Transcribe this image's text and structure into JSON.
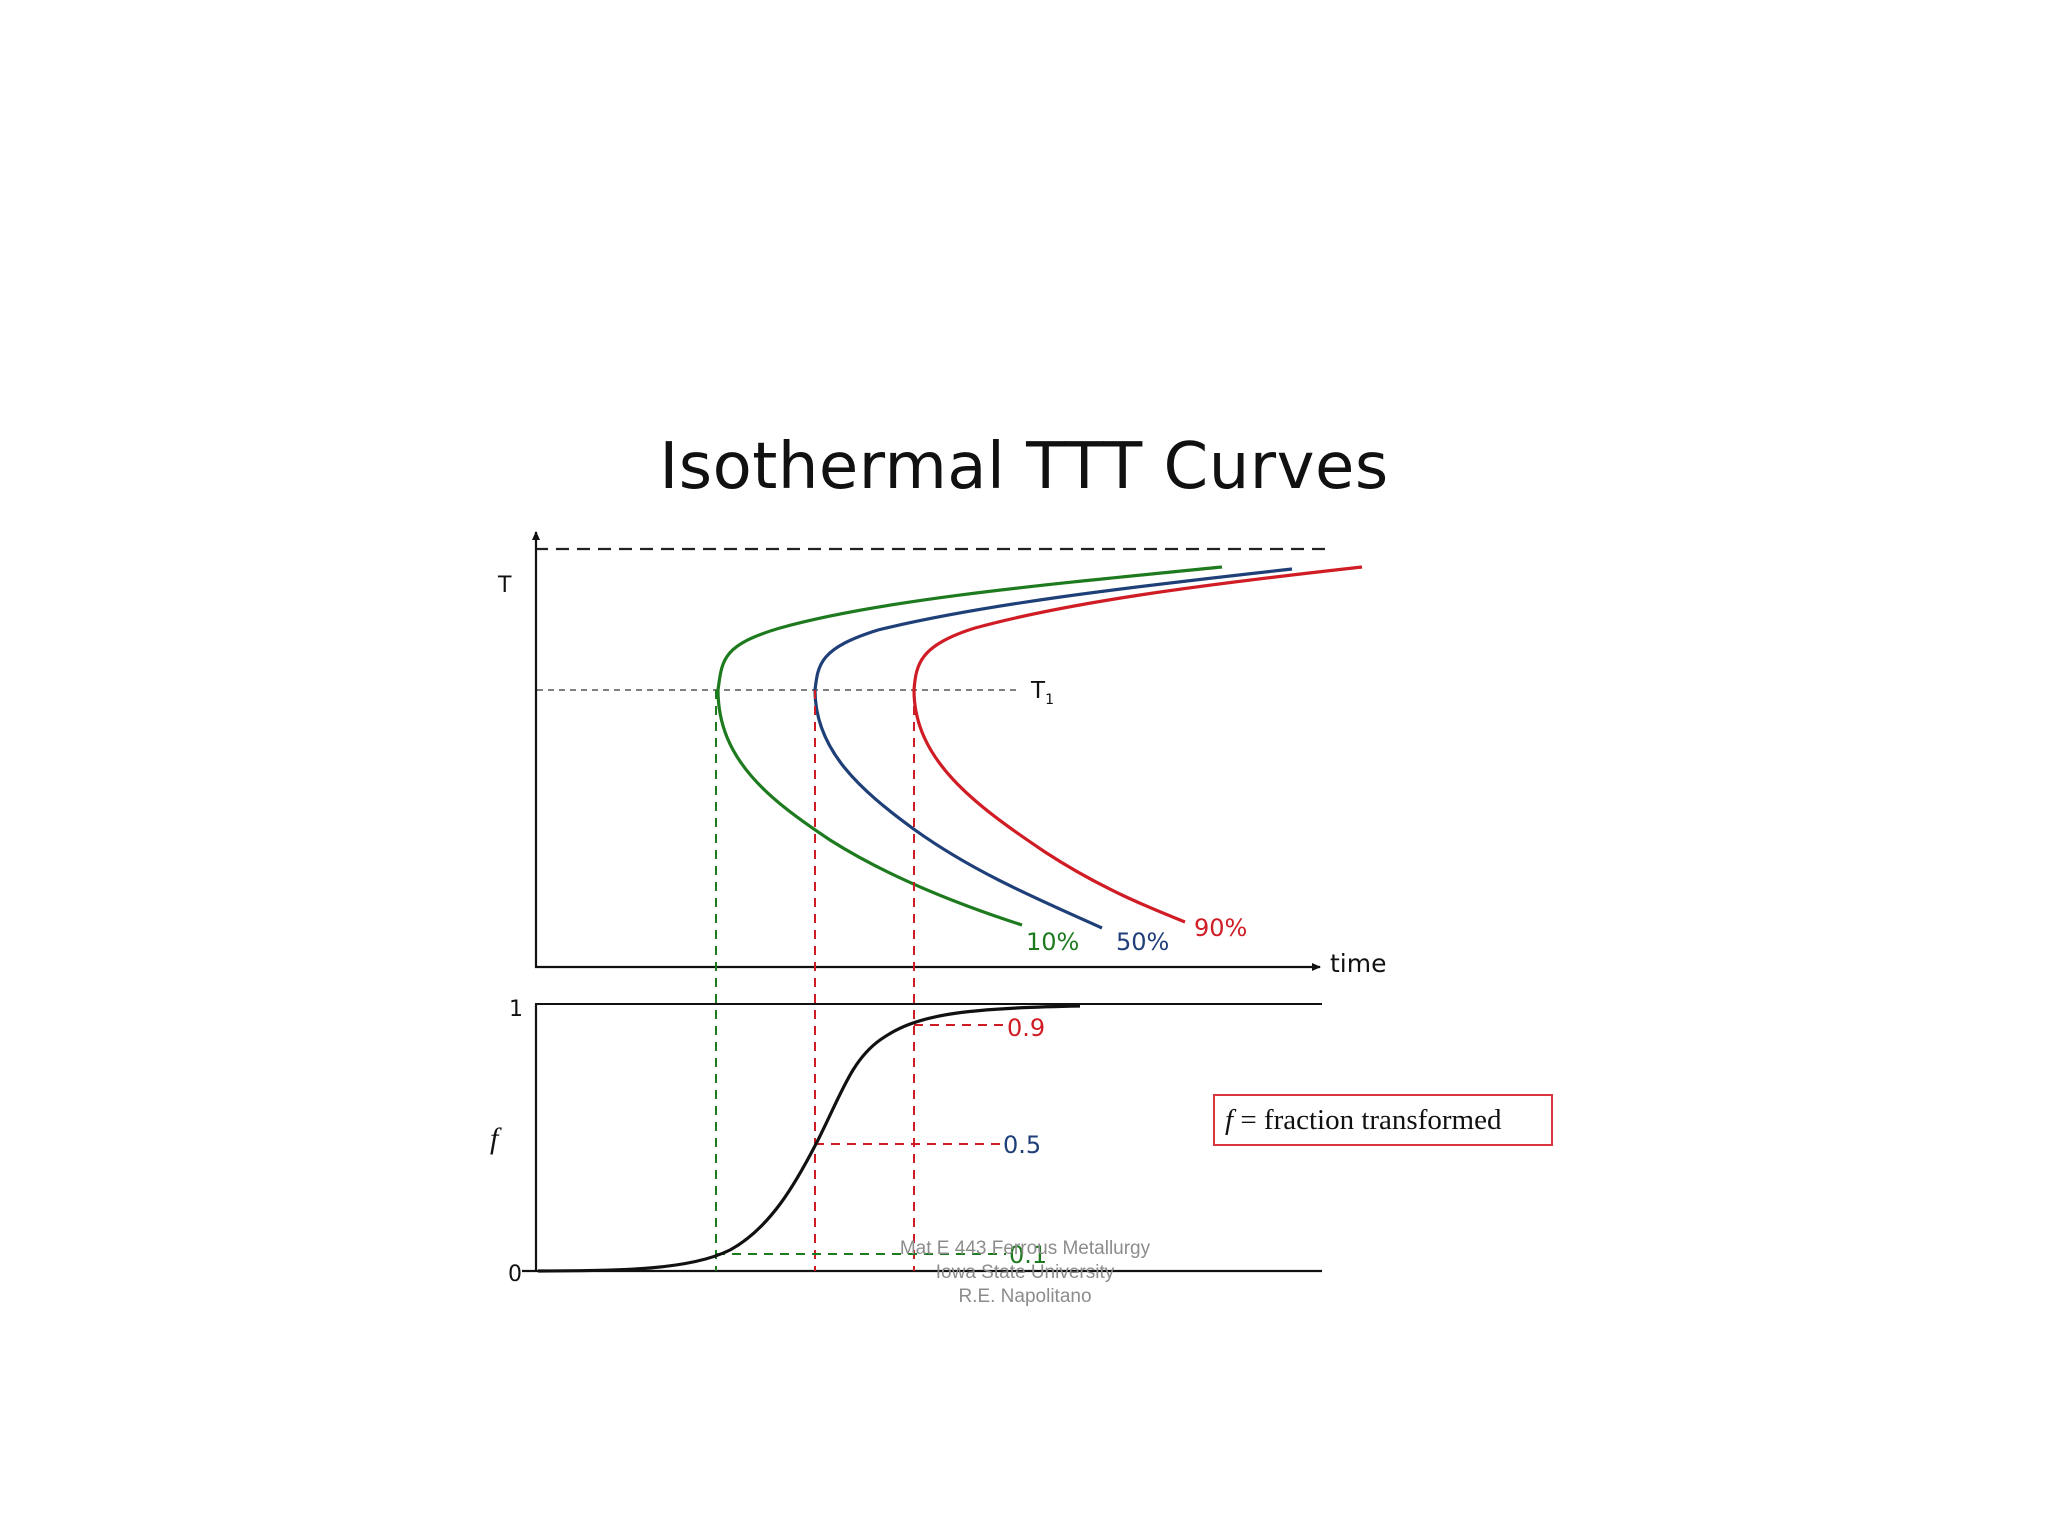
{
  "title": "Isothermal TTT Curves",
  "top_plot": {
    "y_axis_label": "T",
    "x_axis_label": "time",
    "isotherm_label": "T",
    "isotherm_subscript": "1",
    "curves": [
      {
        "label": "10%",
        "color": "#1e7a1e"
      },
      {
        "label": "50%",
        "color": "#1f3f78"
      },
      {
        "label": "90%",
        "color": "#d01c24"
      }
    ]
  },
  "bottom_plot": {
    "y_axis_label": "f",
    "y_max_label": "1",
    "y_min_label": "0",
    "levels": [
      {
        "label": "0.9",
        "color": "#d01c24"
      },
      {
        "label": "0.5",
        "color": "#1f3f78"
      },
      {
        "label": "0.1",
        "color": "#1e7a1e"
      }
    ]
  },
  "legend": {
    "symbol": "f",
    "text": " = fraction transformed"
  },
  "watermark": {
    "line1": "Mat E 443 Ferrous Metallurgy",
    "line2": "Iowa State University",
    "line3": "R.E. Napolitano"
  }
}
